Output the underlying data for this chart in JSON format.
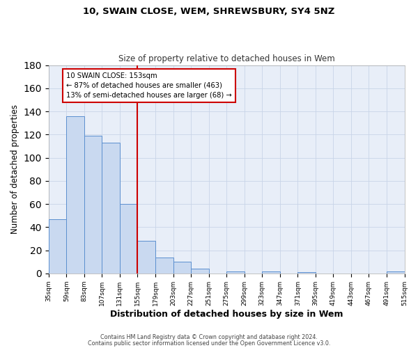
{
  "title": "10, SWAIN CLOSE, WEM, SHREWSBURY, SY4 5NZ",
  "subtitle": "Size of property relative to detached houses in Wem",
  "xlabel": "Distribution of detached houses by size in Wem",
  "ylabel": "Number of detached properties",
  "bar_edges": [
    35,
    59,
    83,
    107,
    131,
    155,
    179,
    203,
    227,
    251,
    275,
    299,
    323,
    347,
    371,
    395,
    419,
    443,
    467,
    491,
    515
  ],
  "bar_heights": [
    47,
    136,
    119,
    113,
    60,
    28,
    14,
    10,
    4,
    0,
    2,
    0,
    2,
    0,
    1,
    0,
    0,
    0,
    0,
    2
  ],
  "bar_color": "#c9d9f0",
  "bar_edge_color": "#5b8fcf",
  "vline_x": 155,
  "vline_color": "#cc0000",
  "ylim": [
    0,
    180
  ],
  "yticks": [
    0,
    20,
    40,
    60,
    80,
    100,
    120,
    140,
    160,
    180
  ],
  "xtick_labels": [
    "35sqm",
    "59sqm",
    "83sqm",
    "107sqm",
    "131sqm",
    "155sqm",
    "179sqm",
    "203sqm",
    "227sqm",
    "251sqm",
    "275sqm",
    "299sqm",
    "323sqm",
    "347sqm",
    "371sqm",
    "395sqm",
    "419sqm",
    "443sqm",
    "467sqm",
    "491sqm",
    "515sqm"
  ],
  "annotation_line1": "10 SWAIN CLOSE: 153sqm",
  "annotation_line2": "← 87% of detached houses are smaller (463)",
  "annotation_line3": "13% of semi-detached houses are larger (68) →",
  "annotation_box_color": "#ffffff",
  "annotation_box_edge_color": "#cc0000",
  "footer_line1": "Contains HM Land Registry data © Crown copyright and database right 2024.",
  "footer_line2": "Contains public sector information licensed under the Open Government Licence v3.0.",
  "background_color": "#ffffff",
  "grid_color": "#c8d4e8"
}
